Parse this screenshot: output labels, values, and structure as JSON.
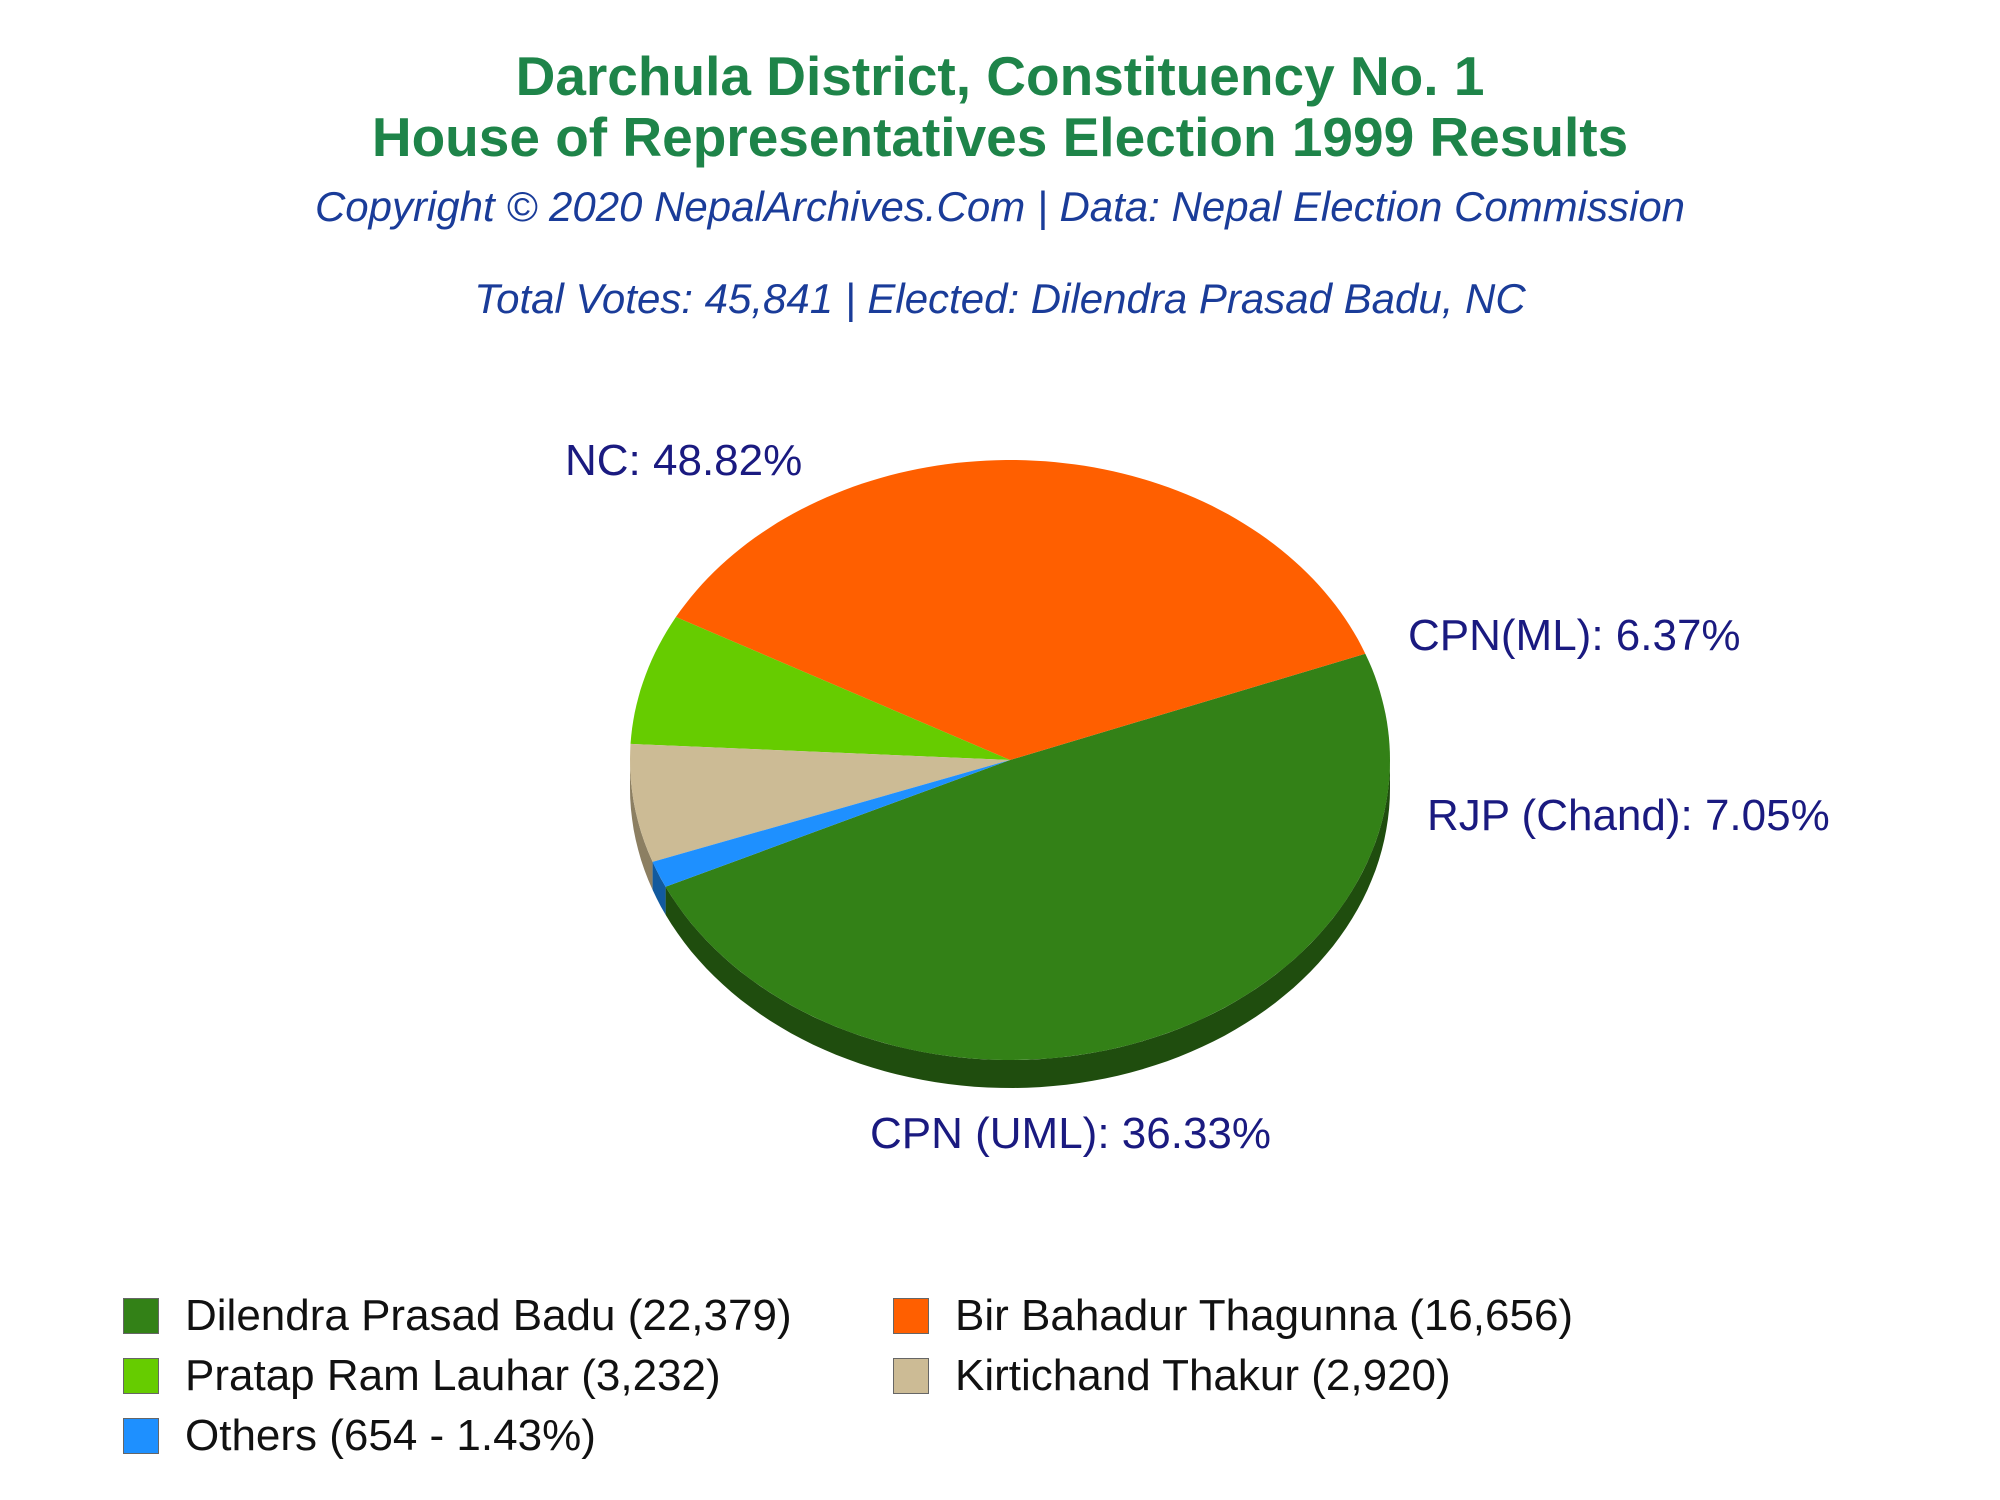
{
  "header": {
    "title_line1": "Darchula District, Constituency No. 1",
    "title_line2": "House of Representatives Election 1999 Results",
    "copyright": "Copyright © 2020 NepalArchives.Com | Data: Nepal Election Commission",
    "summary": "Total Votes: 45,841 | Elected: Dilendra Prasad Badu, NC"
  },
  "chart_data": {
    "type": "pie",
    "total_votes": 45841,
    "slices": [
      {
        "label": "NC: 48.82%",
        "party": "NC",
        "percent": 48.82,
        "color": "#338117",
        "side_color": "#1f4d0e"
      },
      {
        "label": "CPN (UML): 36.33%",
        "party": "CPN (UML)",
        "percent": 36.33,
        "color": "#ff5f00",
        "side_color": "#a80a00"
      },
      {
        "label": "RJP (Chand): 7.05%",
        "party": "RJP (Chand)",
        "percent": 7.05,
        "color": "#66cc00",
        "side_color": "#2f6d00"
      },
      {
        "label": "CPN(ML): 6.37%",
        "party": "CPN(ML)",
        "percent": 6.37,
        "color": "#ccbb95",
        "side_color": "#8c7f62"
      },
      {
        "label": "",
        "party": "Others",
        "percent": 1.43,
        "color": "#1e90ff",
        "side_color": "#125a9e"
      }
    ],
    "legend": [
      {
        "text": "Dilendra Prasad Badu (22,379)",
        "color": "#338117"
      },
      {
        "text": "Bir Bahadur Thagunna (16,656)",
        "color": "#ff5f00"
      },
      {
        "text": "Pratap Ram Lauhar (3,232)",
        "color": "#66cc00"
      },
      {
        "text": "Kirtichand Thakur (2,920)",
        "color": "#ccbb95"
      },
      {
        "text": "Others (654 - 1.43%)",
        "color": "#1e90ff"
      }
    ],
    "legend_position": "bottom",
    "label_color": "#1a1a80"
  }
}
